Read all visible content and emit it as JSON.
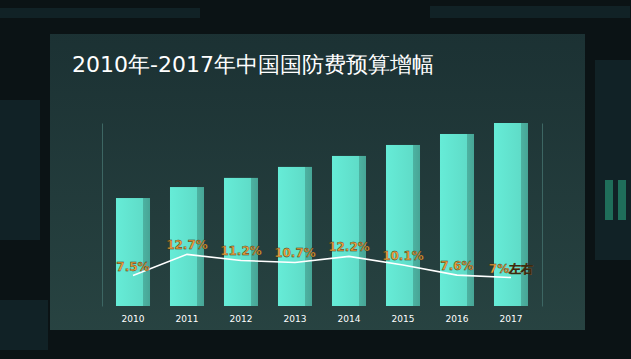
{
  "chart_data": {
    "type": "bar",
    "title": "2010年-2017年中国国防费预算增幅",
    "categories": [
      "2010",
      "2011",
      "2012",
      "2013",
      "2014",
      "2015",
      "2016",
      "2017"
    ],
    "ylim": [
      0,
      100
    ],
    "y2lim": [
      0,
      45
    ],
    "tick_labels": "x",
    "series": [
      {
        "type": "bar",
        "color": "#5fdcc8",
        "values": [
          59,
          65,
          70,
          76,
          82,
          88,
          94,
          100
        ]
      },
      {
        "type": "line",
        "axis": "y2",
        "color": "#ffffff",
        "data_labels": true,
        "values": [
          7.5,
          12.7,
          11.2,
          10.7,
          12.2,
          10.1,
          7.6,
          7
        ],
        "value_labels": [
          "7.5%",
          "12.7%",
          "11.2%",
          "10.7%",
          "12.2%",
          "10.1%",
          "7.6%",
          "7%左右"
        ]
      }
    ]
  }
}
